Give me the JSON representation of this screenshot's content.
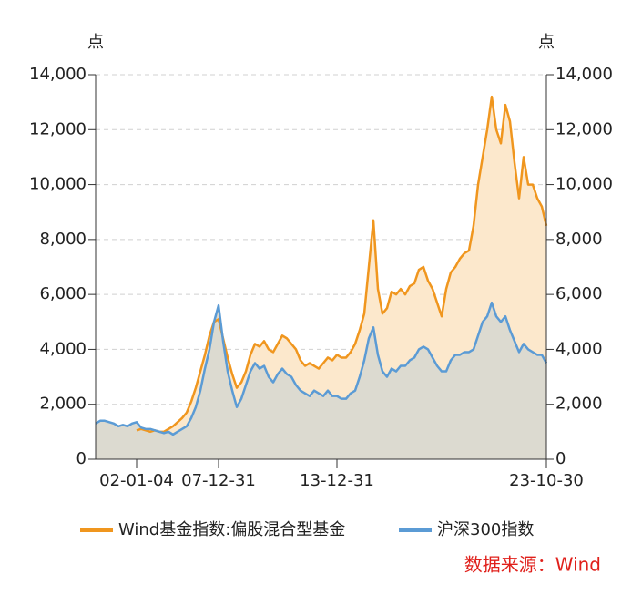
{
  "chart_data": {
    "type": "line",
    "y_label": "点",
    "y2_label": "点",
    "source": "数据来源：Wind",
    "categories": [
      null,
      null,
      null,
      null,
      null,
      null,
      null,
      null,
      null,
      "02-01-04",
      null,
      null,
      null,
      null,
      null,
      null,
      null,
      null,
      null,
      null,
      null,
      null,
      null,
      null,
      null,
      null,
      null,
      "07-12-31",
      null,
      null,
      null,
      null,
      null,
      null,
      null,
      null,
      null,
      null,
      null,
      null,
      null,
      null,
      null,
      null,
      null,
      null,
      null,
      null,
      null,
      null,
      null,
      null,
      null,
      "13-12-31",
      null,
      null,
      null,
      null,
      null,
      null,
      null,
      null,
      null,
      null,
      null,
      null,
      null,
      null,
      null,
      null,
      null,
      null,
      null,
      null,
      null,
      null,
      null,
      null,
      null,
      null,
      null,
      null,
      null,
      null,
      null,
      null,
      null,
      null,
      null,
      null,
      null,
      null,
      null,
      null,
      null,
      null,
      null,
      null,
      null,
      "23-10-30"
    ],
    "series": [
      {
        "name": "Wind基金指数:偏股混合型基金",
        "color": "#f0961e",
        "area_color": "#fce8cc",
        "values": [
          null,
          null,
          null,
          null,
          null,
          null,
          null,
          null,
          null,
          1050,
          1100,
          1050,
          1000,
          1050,
          1000,
          1000,
          1100,
          1200,
          1350,
          1500,
          1700,
          2100,
          2600,
          3200,
          3800,
          4500,
          5000,
          5100,
          4400,
          3700,
          3100,
          2600,
          2800,
          3200,
          3800,
          4200,
          4100,
          4300,
          4000,
          3900,
          4200,
          4500,
          4400,
          4200,
          4000,
          3600,
          3400,
          3500,
          3400,
          3300,
          3500,
          3700,
          3600,
          3800,
          3700,
          3700,
          3900,
          4200,
          4700,
          5300,
          7000,
          8700,
          6200,
          5300,
          5500,
          6100,
          6000,
          6200,
          6000,
          6300,
          6400,
          6900,
          7000,
          6500,
          6200,
          5700,
          5200,
          6200,
          6800,
          7000,
          7300,
          7500,
          7600,
          8500,
          10000,
          11000,
          12000,
          13200,
          12000,
          11500,
          12900,
          12300,
          10800,
          9500,
          11000,
          10000,
          10000,
          9500,
          9200,
          8500
        ]
      },
      {
        "name": "沪深300指数",
        "color": "#5b9bd5",
        "area_color": "#dcdad0",
        "values": [
          1300,
          1400,
          1400,
          1350,
          1300,
          1200,
          1250,
          1200,
          1300,
          1350,
          1150,
          1100,
          1100,
          1050,
          1000,
          950,
          1000,
          900,
          1000,
          1100,
          1200,
          1500,
          1900,
          2500,
          3300,
          4000,
          5000,
          5600,
          4300,
          3200,
          2500,
          1900,
          2200,
          2700,
          3200,
          3500,
          3300,
          3400,
          3000,
          2800,
          3100,
          3300,
          3100,
          3000,
          2700,
          2500,
          2400,
          2300,
          2500,
          2400,
          2300,
          2500,
          2300,
          2300,
          2200,
          2200,
          2400,
          2500,
          3000,
          3600,
          4400,
          4800,
          3800,
          3200,
          3000,
          3300,
          3200,
          3400,
          3400,
          3600,
          3700,
          4000,
          4100,
          4000,
          3700,
          3400,
          3200,
          3200,
          3600,
          3800,
          3800,
          3900,
          3900,
          4000,
          4500,
          5000,
          5200,
          5700,
          5200,
          5000,
          5200,
          4700,
          4300,
          3900,
          4200,
          4000,
          3900,
          3800,
          3800,
          3500
        ]
      }
    ],
    "ylim": [
      0,
      14000
    ],
    "yticks": [
      0,
      {
        "value": 2000,
        "label": "2,000"
      },
      {
        "value": 4000,
        "label": "4,000"
      },
      {
        "value": 6000,
        "label": "6,000"
      },
      {
        "value": 8000,
        "label": "8,000"
      },
      {
        "value": 10000,
        "label": "10,000"
      },
      {
        "value": 12000,
        "label": "12,000"
      },
      {
        "value": 14000,
        "label": "14,000"
      }
    ],
    "y2lim": [
      0,
      14000
    ],
    "y2ticks": [
      0,
      {
        "value": 2000,
        "label": "2,000"
      },
      {
        "value": 4000,
        "label": "4,000"
      },
      {
        "value": 6000,
        "label": "6,000"
      },
      {
        "value": 8000,
        "label": "8,000"
      },
      {
        "value": 10000,
        "label": "10,000"
      },
      {
        "value": 12000,
        "label": "12,000"
      },
      {
        "value": 14000,
        "label": "14,000"
      }
    ],
    "grid": true
  }
}
